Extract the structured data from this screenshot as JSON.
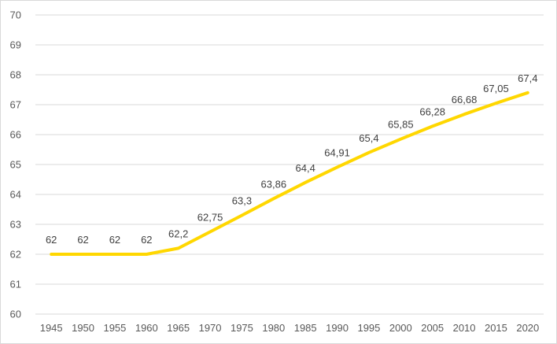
{
  "chart_data": {
    "type": "line",
    "title": "",
    "xlabel": "",
    "ylabel": "",
    "x": [
      "1945",
      "1950",
      "1955",
      "1960",
      "1965",
      "1970",
      "1975",
      "1980",
      "1985",
      "1990",
      "1995",
      "2000",
      "2005",
      "2010",
      "2015",
      "2020"
    ],
    "values": [
      62,
      62,
      62,
      62,
      62.2,
      62.75,
      63.3,
      63.86,
      64.4,
      64.91,
      65.4,
      65.85,
      66.28,
      66.68,
      67.05,
      67.4
    ],
    "data_labels": [
      "62",
      "62",
      "62",
      "62",
      "62,2",
      "62,75",
      "63,3",
      "63,86",
      "64,4",
      "64,91",
      "65,4",
      "65,85",
      "66,28",
      "66,68",
      "67,05",
      "67,4"
    ],
    "y_ticks": [
      60,
      61,
      62,
      63,
      64,
      65,
      66,
      67,
      68,
      69,
      70
    ],
    "ylim": [
      60,
      70
    ],
    "grid": true,
    "legend": "none",
    "line_color": "#FFD700"
  }
}
